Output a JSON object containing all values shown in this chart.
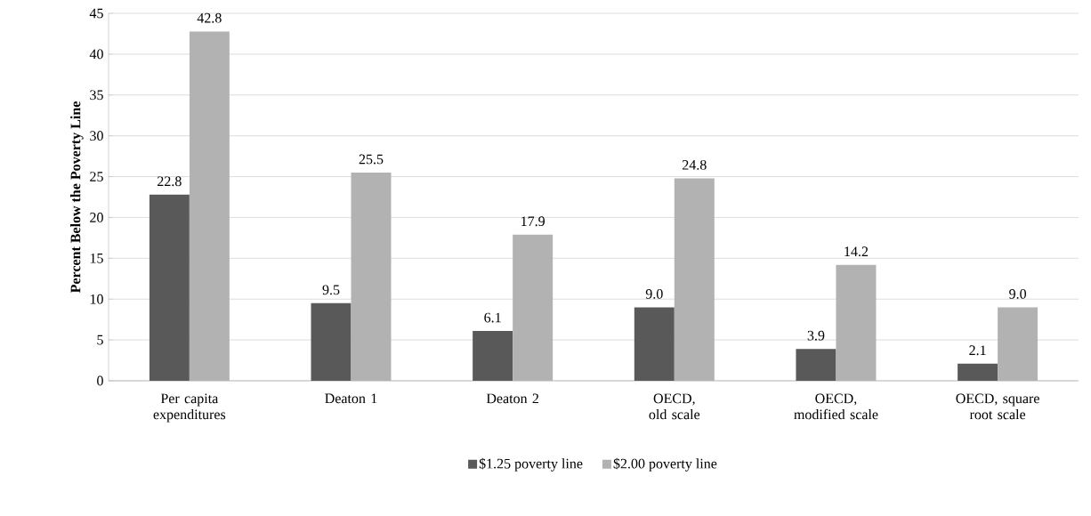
{
  "chart_data": {
    "type": "bar",
    "ylabel": "Percent Below the Poverty Line",
    "categories": [
      "Per capita expenditures",
      "Deaton 1",
      "Deaton 2",
      "OECD, old scale",
      "OECD, modified scale",
      "OECD, square root scale"
    ],
    "series": [
      {
        "name": "$1.25 poverty line",
        "color": "#595959",
        "values": [
          22.8,
          9.5,
          6.1,
          9.0,
          3.9,
          2.1
        ],
        "value_labels": [
          "22.8",
          "9.5",
          "6.1",
          "9.0",
          "3.9",
          "2.1"
        ]
      },
      {
        "name": "$2.00 poverty line",
        "color": "#b2b2b2",
        "values": [
          42.8,
          25.5,
          17.9,
          24.8,
          14.2,
          9.0
        ],
        "value_labels": [
          "42.8",
          "25.5",
          "17.9",
          "24.8",
          "14.2",
          "9.0"
        ]
      }
    ],
    "ylim": [
      0,
      45
    ],
    "yticks": [
      0,
      5,
      10,
      15,
      20,
      25,
      30,
      35,
      40,
      45
    ],
    "grid": "y",
    "legend": "bottom"
  }
}
